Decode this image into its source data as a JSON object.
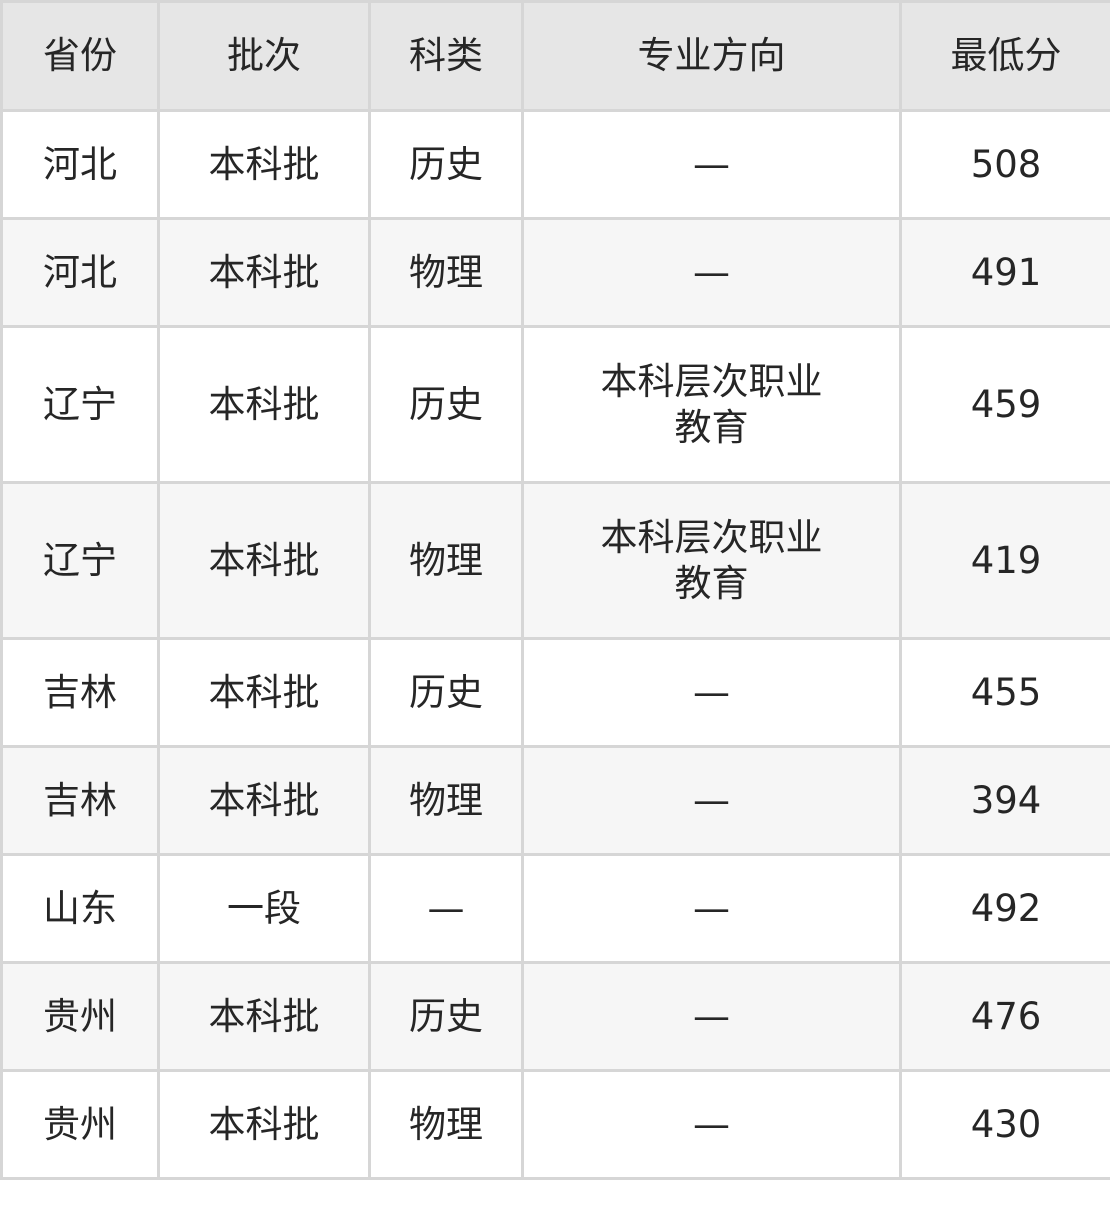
{
  "table": {
    "headers": [
      "省份",
      "批次",
      "科类",
      "专业方向",
      "最低分"
    ],
    "rows": [
      [
        "河北",
        "本科批",
        "历史",
        "—",
        "508"
      ],
      [
        "河北",
        "本科批",
        "物理",
        "—",
        "491"
      ],
      [
        "辽宁",
        "本科批",
        "历史",
        "本科层次职业教育",
        "459"
      ],
      [
        "辽宁",
        "本科批",
        "物理",
        "本科层次职业教育",
        "419"
      ],
      [
        "吉林",
        "本科批",
        "历史",
        "—",
        "455"
      ],
      [
        "吉林",
        "本科批",
        "物理",
        "—",
        "394"
      ],
      [
        "山东",
        "一段",
        "—",
        "—",
        "492"
      ],
      [
        "贵州",
        "本科批",
        "历史",
        "—",
        "476"
      ],
      [
        "贵州",
        "本科批",
        "物理",
        "—",
        "430"
      ]
    ]
  },
  "colors": {
    "header_bg": "#e6e6e6",
    "alt_row_bg": "#f6f6f6",
    "border": "#d6d6d6"
  }
}
